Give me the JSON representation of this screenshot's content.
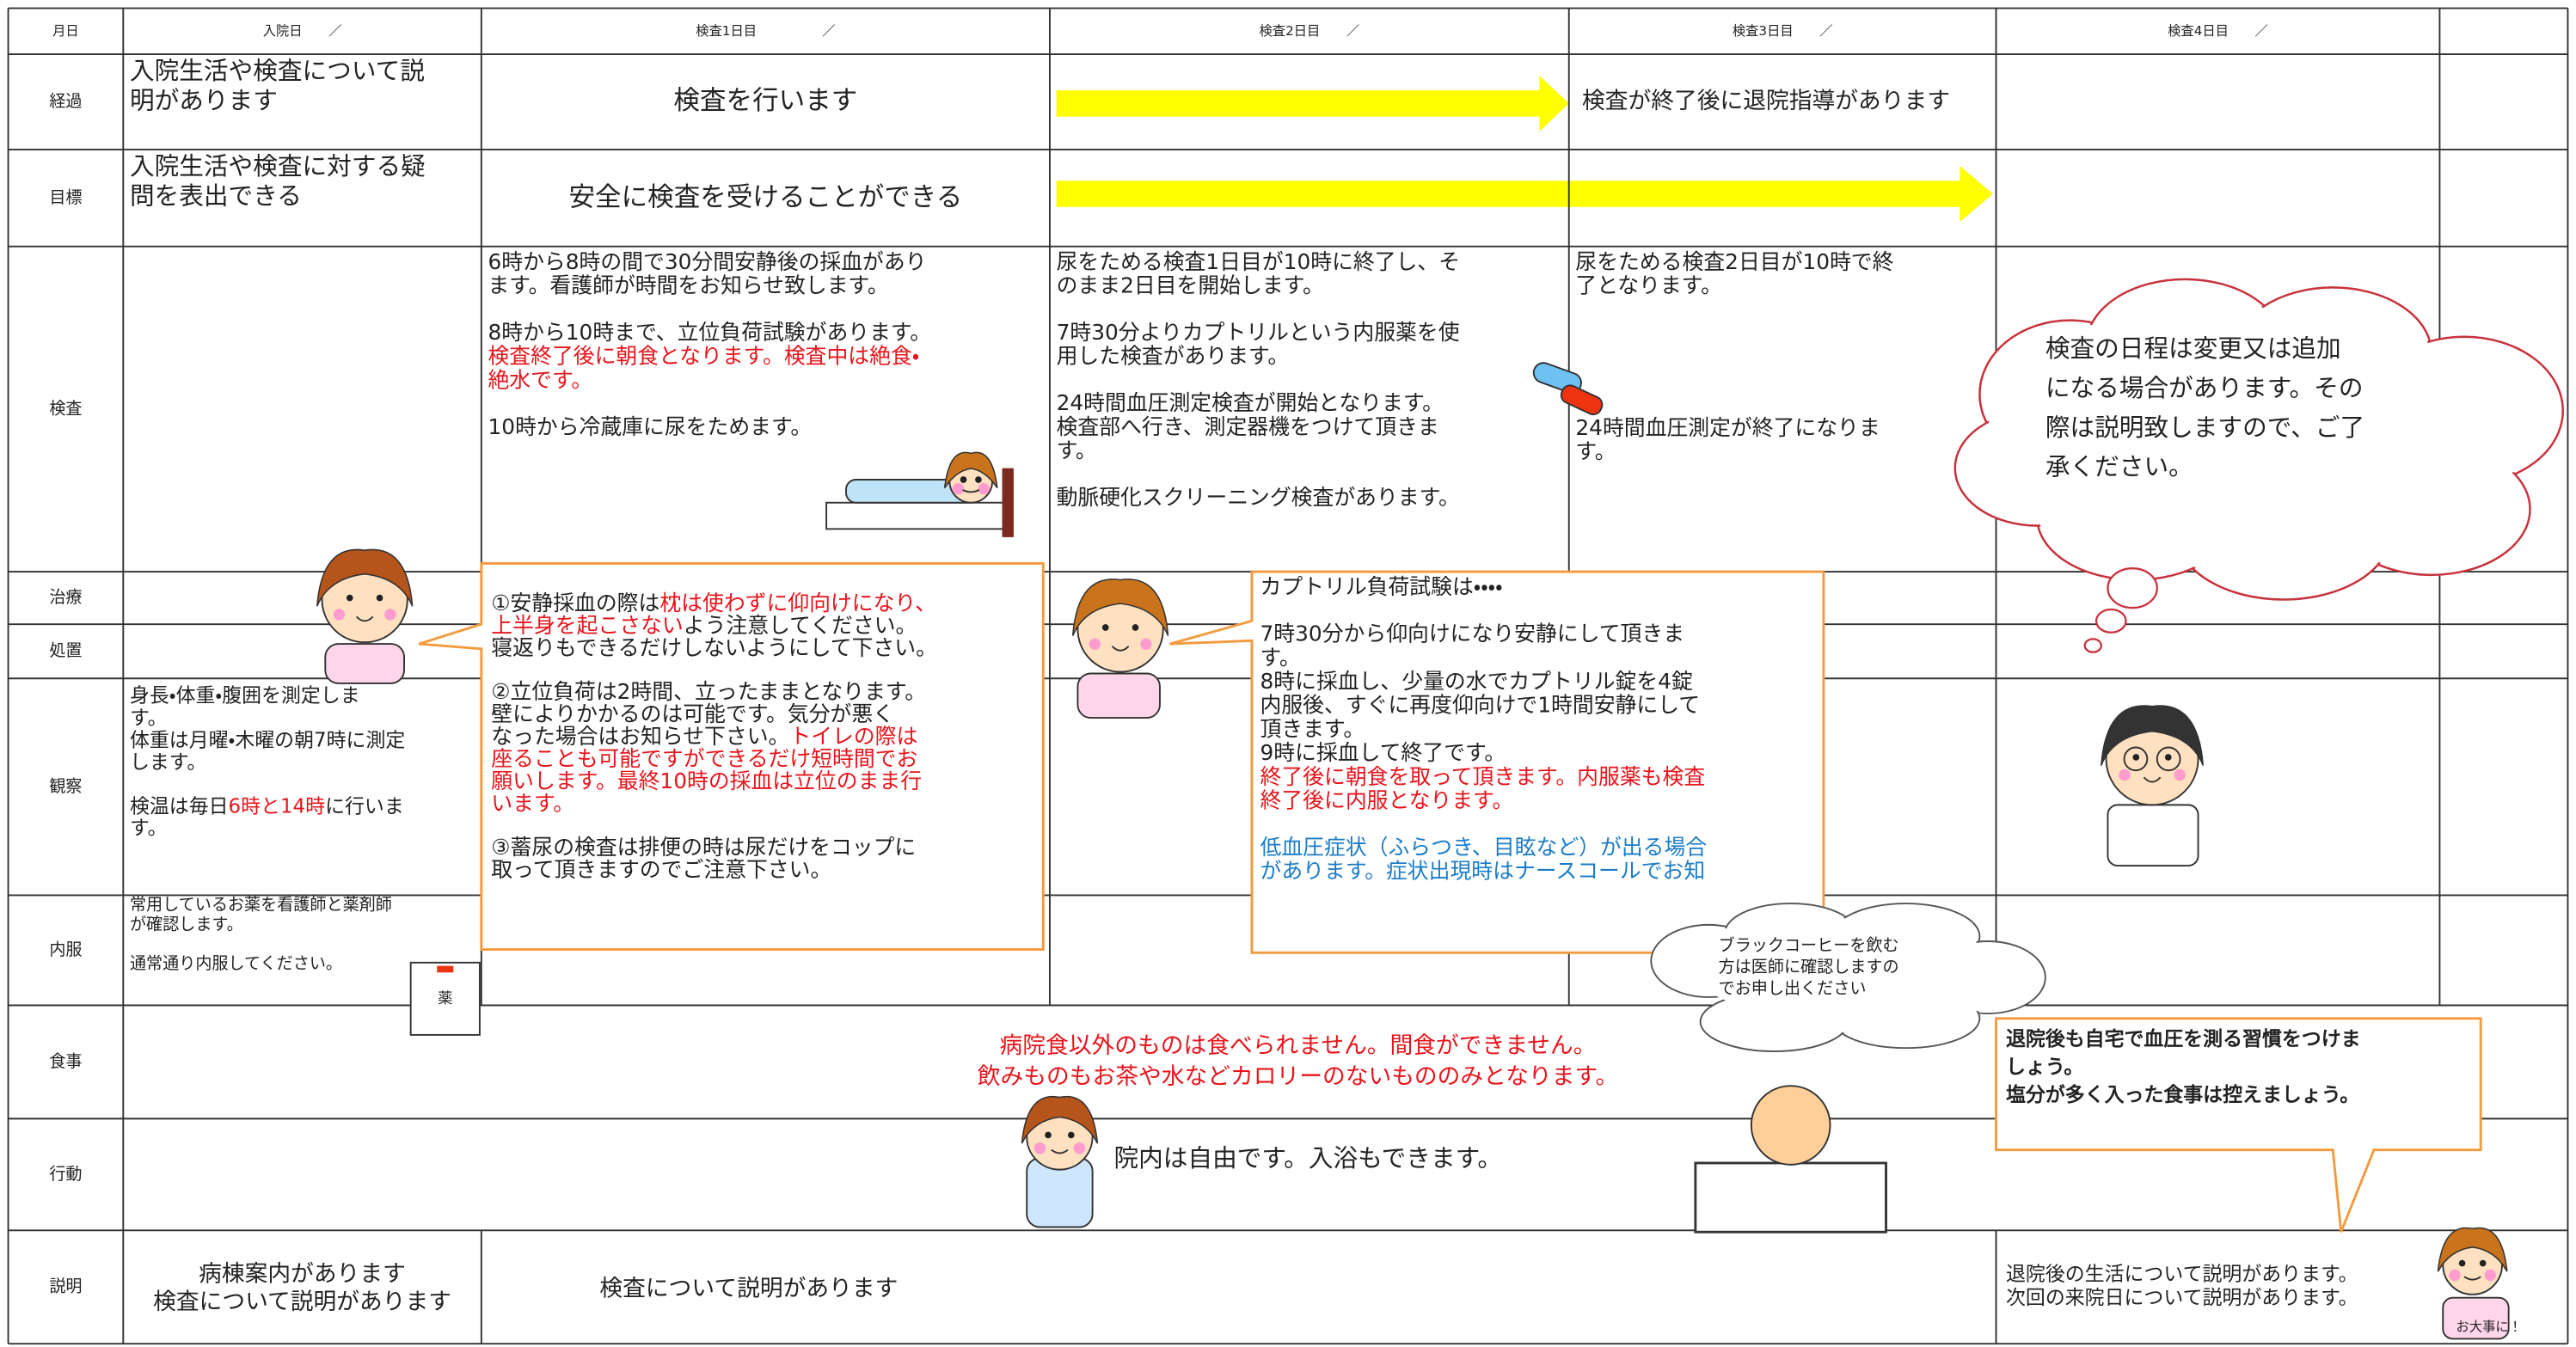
{
  "header": [
    "月日",
    "入院日　　／",
    "検査1日目　　　　　／",
    "検査2日目　　／",
    "検査3日目　　／",
    "検査4日目　　／"
  ],
  "row_labels": [
    "経過",
    "目標",
    "検査",
    "治療",
    "処置",
    "観察",
    "内服",
    "食事",
    "行動",
    "説明"
  ],
  "cells": [
    {
      "paragraphs": [
        [
          "入院生活や検査について説",
          "明があります"
        ]
      ]
    },
    {
      "paragraphs": [
        [
          "検査を行います"
        ]
      ]
    },
    {
      "paragraphs": [
        [
          "検査が終了後に退院指導があります"
        ]
      ]
    },
    {
      "paragraphs": [
        [
          "入院生活や検査に対する疑",
          "問を表出できる"
        ]
      ]
    },
    {
      "paragraphs": [
        [
          "安全に検査を受けることができる"
        ]
      ]
    },
    {
      "paragraphs": [
        [
          "6時から8時の間で30分間安静後の採血があり",
          "ます。看護師が時間をお知らせ致します。"
        ],
        [
          "8時から10時まで、立位負荷試験があります。",
          {
            "text": "検査終了後に朝食となります。検査中は絶食・",
            "color": "#e8141b"
          },
          {
            "text": "絶水です。",
            "color": "#e8141b"
          }
        ],
        [
          "10時から冷蔵庫に尿をためます。"
        ]
      ]
    },
    {
      "paragraphs": [
        [
          "尿をためる検査1日目が10時に終了し、そ",
          "のまま2日目を開始します。"
        ],
        [
          "7時30分よりカプトリルという内服薬を使",
          "用した検査があります。"
        ],
        [
          "24時間血圧測定検査が開始となります。",
          "検査部へ行き、測定器機をつけて頂きま",
          "す。"
        ],
        [
          "動脈硬化スクリーニング検査があります。"
        ]
      ]
    },
    {
      "paragraphs": [
        [
          "尿をためる検査2日目が10時で終",
          "了となります。"
        ],
        [
          "24時間血圧測定が終了になりま",
          "す。"
        ]
      ]
    },
    {
      "paragraphs": [
        [
          "身長・体重・腹囲を測定しま",
          "す。",
          "体重は月曜・木曜の朝7時に測定",
          "します。"
        ],
        [
          [
            "検温は毎日",
            {
              "text": "6時と14時",
              "color": "#e8141b"
            },
            "に行いま"
          ],
          "す。"
        ]
      ]
    },
    {
      "paragraphs": [
        [
          "常用しているお薬を看護師と薬剤師",
          "が確認します。"
        ],
        [
          "通常通り内服してください。"
        ]
      ]
    },
    {
      "paragraphs": [
        [
          {
            "text": "病院食以外のものは食べられません。間食ができません。",
            "color": "#e8141b"
          },
          {
            "text": "飲みものもお茶や水などカロリーのないもののみとなります。",
            "color": "#e8141b"
          }
        ]
      ]
    },
    {
      "paragraphs": [
        [
          "院内は自由です。入浴もできます。"
        ]
      ]
    },
    {
      "paragraphs": [
        [
          "病棟案内があります",
          "検査について説明があります"
        ]
      ]
    },
    {
      "paragraphs": [
        [
          "検査について説明があります"
        ]
      ]
    },
    {
      "paragraphs": [
        [
          "退院後の生活について説明があります。",
          "次回の来院日について説明があります。"
        ]
      ]
    }
  ],
  "callouts": [
    {
      "paragraphs": [
        [
          [
            "①安静採血の際は",
            {
              "text": "枕は使わずに仰向けになり、",
              "color": "#e8141b"
            }
          ],
          [
            {
              "text": "上半身を起こさない",
              "color": "#e8141b"
            },
            "よう注意してください。"
          ],
          "寝返りもできるだけしないようにして下さい。"
        ],
        [
          "②立位負荷は2時間、立ったままとなります。",
          "壁によりかかるのは可能です。気分が悪く",
          [
            "なった場合はお知らせ下さい。",
            {
              "text": "トイレの際は",
              "color": "#e8141b"
            }
          ],
          {
            "text": "座ることも可能ですができるだけ短時間でお",
            "color": "#e8141b"
          },
          {
            "text": "願いします。最終10時の採血は立位のまま行",
            "color": "#e8141b"
          },
          {
            "text": "います。",
            "color": "#e8141b"
          }
        ],
        [
          "③蓄尿の検査は排便の時は尿だけをコップに",
          "取って頂きますのでご注意下さい。"
        ]
      ]
    },
    {
      "paragraphs": [
        [
          "カプトリル負荷試験は・・・・"
        ],
        [
          "7時30分から仰向けになり安静にして頂きま",
          "す。",
          "8時に採血し、少量の水でカプトリル錠を4錠",
          "内服後、すぐに再度仰向けで1時間安静にして",
          "頂きます。",
          "9時に採血して終了です。",
          {
            "text": "終了後に朝食を取って頂きます。内服薬も検査",
            "color": "#e8141b"
          },
          {
            "text": "終了後に内服となります。",
            "color": "#e8141b"
          }
        ],
        [
          {
            "text": "低血圧症状（ふらつき、目眩など）が出る場合",
            "color": "#1a7cc8"
          },
          {
            "text": "があります。症状出現時はナースコールでお知",
            "color": "#1a7cc8"
          }
        ]
      ]
    },
    {
      "paragraphs": [
        [
          "検査の日程は変更又は追加",
          "になる場合があります。その",
          "際は説明致しますので、ご了",
          "承ください。"
        ]
      ]
    },
    {
      "paragraphs": [
        [
          "ブラックコーヒーを飲む",
          "方は医師に確認しますの",
          "でお申し出ください"
        ]
      ]
    },
    {
      "paragraphs": [
        [
          "退院後も自宅で血圧を測る習慣をつけま",
          "しょう。",
          "塩分が多く入った食事は控えましょう。"
        ]
      ]
    }
  ],
  "illustration_labels": [
    "薬",
    "お大事に！"
  ]
}
